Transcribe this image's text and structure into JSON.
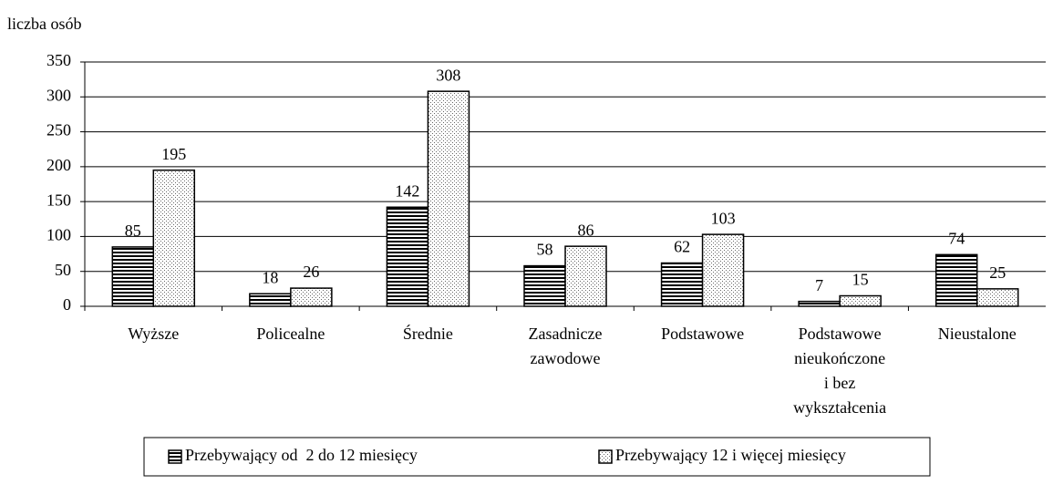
{
  "chart_data": {
    "type": "bar",
    "y_label": "liczba osób",
    "categories": [
      "Wyższe",
      "Policealne",
      "Średnie",
      "Zasadnicze zawodowe",
      "Podstawowe",
      "Podstawowe nieukończone i bez wykształcenia",
      "Nieustalone"
    ],
    "series": [
      {
        "name": "Przebywający od  2 do 12 miesięcy",
        "color": "#000000",
        "hatch": "horizontal",
        "values": [
          85,
          18,
          142,
          58,
          62,
          7,
          74
        ]
      },
      {
        "name": "Przebywający 12 i więcej miesięcy",
        "color": "#000000",
        "hatch": "dots",
        "values": [
          195,
          26,
          308,
          86,
          103,
          15,
          25
        ]
      }
    ],
    "ylim": [
      0,
      350
    ],
    "yticks": [
      0,
      50,
      100,
      150,
      200,
      250,
      300,
      350
    ],
    "grid": true,
    "legend": "bottom"
  }
}
